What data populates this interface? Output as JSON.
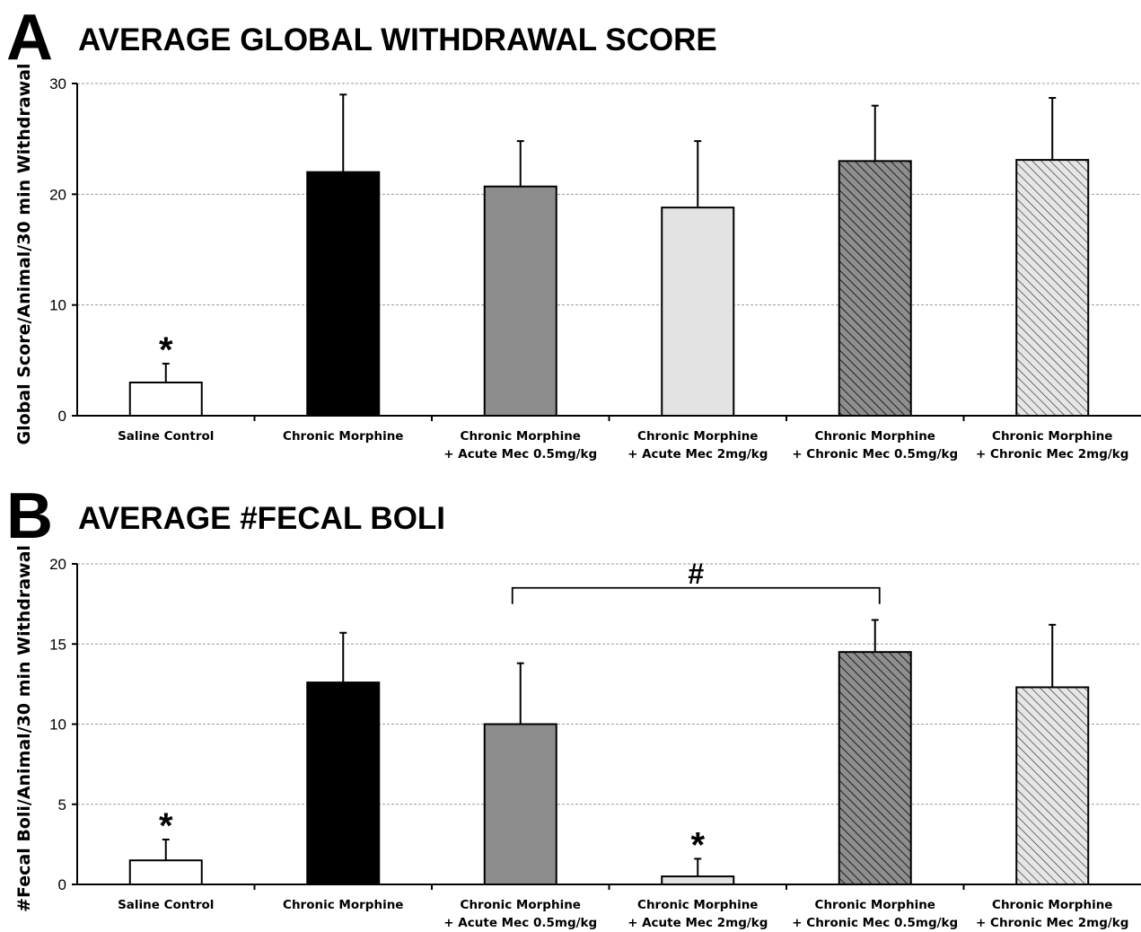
{
  "chart_data": [
    {
      "type": "bar",
      "panel_letter": "A",
      "title": "AVERAGE GLOBAL WITHDRAWAL SCORE",
      "ylabel": "Global Score/Animal/30 min Withdrawal",
      "ylim": [
        0,
        30
      ],
      "yticks": [
        0,
        10,
        20,
        30
      ],
      "grid": true,
      "categories": [
        [
          "Saline Control"
        ],
        [
          "Chronic Morphine"
        ],
        [
          "Chronic Morphine",
          "+ Acute Mec 0.5mg/kg"
        ],
        [
          "Chronic Morphine",
          "+ Acute Mec 2mg/kg"
        ],
        [
          "Chronic Morphine",
          "+ Chronic Mec 0.5mg/kg"
        ],
        [
          "Chronic Morphine",
          "+ Chronic Mec 2mg/kg"
        ]
      ],
      "values": [
        3.0,
        22.0,
        20.7,
        18.8,
        23.0,
        23.1
      ],
      "errors": [
        1.7,
        7.0,
        4.1,
        6.0,
        5.0,
        5.6
      ],
      "fills": [
        "#ffffff",
        "#000000",
        "#8c8c8c",
        "#e3e3e3",
        "dark-hatch",
        "light-hatch"
      ],
      "significance": [
        {
          "category_index": 0,
          "label": "*"
        }
      ]
    },
    {
      "type": "bar",
      "panel_letter": "B",
      "title": "AVERAGE #FECAL BOLI",
      "ylabel": "#Fecal Boli/Animal/30 min Withdrawal",
      "ylim": [
        0,
        20
      ],
      "yticks": [
        0,
        5,
        10,
        15,
        20
      ],
      "grid": true,
      "categories": [
        [
          "Saline Control"
        ],
        [
          "Chronic Morphine"
        ],
        [
          "Chronic Morphine",
          "+ Acute Mec 0.5mg/kg"
        ],
        [
          "Chronic Morphine",
          "+ Acute Mec 2mg/kg"
        ],
        [
          "Chronic Morphine",
          "+ Chronic Mec 0.5mg/kg"
        ],
        [
          "Chronic Morphine",
          "+ Chronic Mec 2mg/kg"
        ]
      ],
      "values": [
        1.5,
        12.6,
        10.0,
        0.5,
        14.5,
        12.3
      ],
      "errors": [
        1.3,
        3.1,
        3.8,
        1.1,
        2.0,
        3.9
      ],
      "fills": [
        "#ffffff",
        "#000000",
        "#8c8c8c",
        "#e3e3e3",
        "dark-hatch",
        "light-hatch"
      ],
      "significance": [
        {
          "category_index": 0,
          "label": "*"
        },
        {
          "category_index": 3,
          "label": "*"
        }
      ],
      "bracket": {
        "from_index": 2,
        "to_index": 4,
        "label": "#",
        "level": 18.5
      }
    }
  ]
}
